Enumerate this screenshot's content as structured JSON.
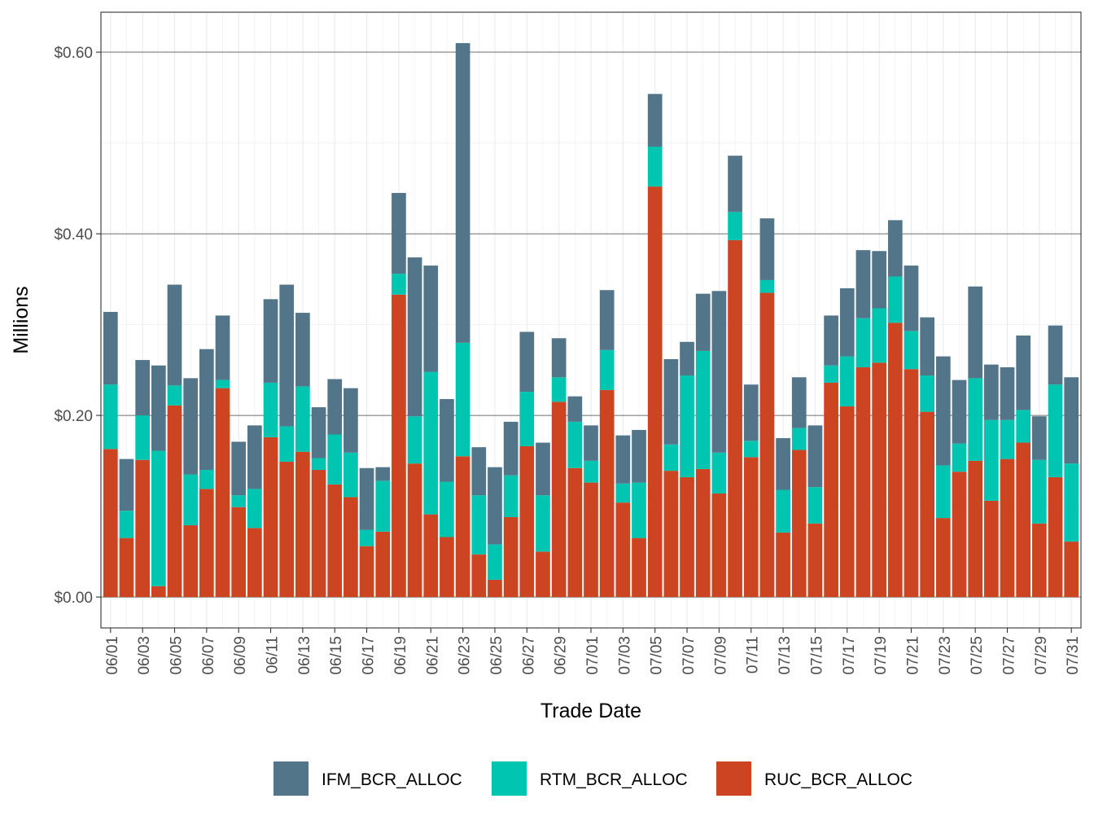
{
  "chart_data": {
    "type": "bar",
    "stacked": true,
    "title": "",
    "xlabel": "Trade Date",
    "ylabel": "Millions",
    "ylim": [
      -0.034,
      0.644
    ],
    "y_ticks": [
      0.0,
      0.2,
      0.4,
      0.6
    ],
    "y_tick_labels": [
      "$0.00",
      "$0.20",
      "$0.40",
      "$0.60"
    ],
    "y_minor_ticks": [
      0.1,
      0.3,
      0.5
    ],
    "legend_position": "bottom",
    "categories": [
      "06/01",
      "06/02",
      "06/03",
      "06/04",
      "06/05",
      "06/06",
      "06/07",
      "06/08",
      "06/09",
      "06/10",
      "06/11",
      "06/12",
      "06/13",
      "06/14",
      "06/15",
      "06/16",
      "06/17",
      "06/18",
      "06/19",
      "06/20",
      "06/21",
      "06/22",
      "06/23",
      "06/24",
      "06/25",
      "06/26",
      "06/27",
      "06/28",
      "06/29",
      "06/30",
      "07/01",
      "07/02",
      "07/03",
      "07/04",
      "07/05",
      "07/06",
      "07/07",
      "07/08",
      "07/09",
      "07/10",
      "07/11",
      "07/12",
      "07/13",
      "07/14",
      "07/15",
      "07/16",
      "07/17",
      "07/18",
      "07/19",
      "07/20",
      "07/21",
      "07/22",
      "07/23",
      "07/24",
      "07/25",
      "07/26",
      "07/27",
      "07/28",
      "07/29",
      "07/30",
      "07/31"
    ],
    "tick_labels": [
      "06/01",
      "06/03",
      "06/05",
      "06/07",
      "06/09",
      "06/11",
      "06/13",
      "06/15",
      "06/17",
      "06/19",
      "06/21",
      "06/23",
      "06/25",
      "06/27",
      "06/29",
      "07/01",
      "07/03",
      "07/05",
      "07/07",
      "07/09",
      "07/11",
      "07/13",
      "07/15",
      "07/17",
      "07/19",
      "07/21",
      "07/23",
      "07/25",
      "07/27",
      "07/29",
      "07/31"
    ],
    "series": [
      {
        "name": "RUC_BCR_ALLOC",
        "color": "#cc4520",
        "values": [
          0.163,
          0.065,
          0.151,
          0.012,
          0.211,
          0.079,
          0.119,
          0.23,
          0.099,
          0.076,
          0.176,
          0.149,
          0.16,
          0.14,
          0.124,
          0.11,
          0.056,
          0.072,
          0.333,
          0.147,
          0.091,
          0.066,
          0.155,
          0.047,
          0.019,
          0.088,
          0.166,
          0.05,
          0.215,
          0.142,
          0.126,
          0.228,
          0.104,
          0.065,
          0.452,
          0.139,
          0.132,
          0.141,
          0.114,
          0.393,
          0.154,
          0.335,
          0.071,
          0.162,
          0.081,
          0.236,
          0.21,
          0.253,
          0.258,
          0.302,
          0.251,
          0.204,
          0.087,
          0.138,
          0.15,
          0.106,
          0.152,
          0.17,
          0.081,
          0.132,
          0.061
        ]
      },
      {
        "name": "RTM_BCR_ALLOC",
        "color": "#00c5b0",
        "values": [
          0.071,
          0.03,
          0.049,
          0.149,
          0.022,
          0.056,
          0.021,
          0.009,
          0.013,
          0.043,
          0.06,
          0.039,
          0.072,
          0.013,
          0.055,
          0.049,
          0.018,
          0.056,
          0.023,
          0.052,
          0.157,
          0.061,
          0.125,
          0.065,
          0.039,
          0.046,
          0.06,
          0.062,
          0.027,
          0.051,
          0.024,
          0.044,
          0.021,
          0.061,
          0.044,
          0.029,
          0.112,
          0.13,
          0.045,
          0.031,
          0.018,
          0.014,
          0.047,
          0.024,
          0.04,
          0.019,
          0.055,
          0.054,
          0.06,
          0.051,
          0.042,
          0.04,
          0.058,
          0.031,
          0.091,
          0.089,
          0.043,
          0.036,
          0.07,
          0.102,
          0.086
        ]
      },
      {
        "name": "IFM_BCR_ALLOC",
        "color": "#53758a",
        "values": [
          0.08,
          0.057,
          0.061,
          0.094,
          0.111,
          0.106,
          0.133,
          0.071,
          0.059,
          0.07,
          0.092,
          0.156,
          0.081,
          0.056,
          0.061,
          0.071,
          0.068,
          0.015,
          0.089,
          0.175,
          0.117,
          0.091,
          0.33,
          0.053,
          0.085,
          0.059,
          0.066,
          0.058,
          0.043,
          0.028,
          0.039,
          0.066,
          0.053,
          0.058,
          0.058,
          0.094,
          0.037,
          0.063,
          0.178,
          0.062,
          0.062,
          0.068,
          0.057,
          0.056,
          0.068,
          0.055,
          0.075,
          0.075,
          0.063,
          0.062,
          0.072,
          0.064,
          0.12,
          0.07,
          0.101,
          0.061,
          0.058,
          0.082,
          0.048,
          0.065,
          0.095
        ]
      }
    ],
    "legend_order": [
      "IFM_BCR_ALLOC",
      "RTM_BCR_ALLOC",
      "RUC_BCR_ALLOC"
    ]
  }
}
